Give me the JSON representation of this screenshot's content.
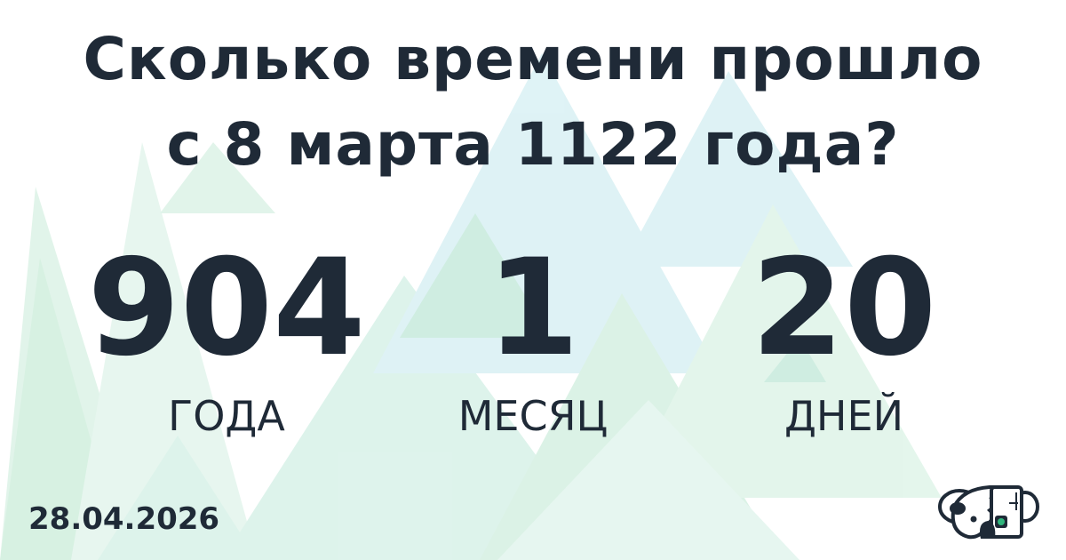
{
  "title": {
    "line1": "Сколько времени прошло",
    "line2": "с 8 марта 1122 года?"
  },
  "elapsed": [
    {
      "value": "904",
      "unit": "ГОДА"
    },
    {
      "value": "1",
      "unit": "МЕСЯЦ"
    },
    {
      "value": "20",
      "unit": "ДНЕЙ"
    }
  ],
  "date": "28.04.2026",
  "colors": {
    "text": "#1f2a37",
    "triangle_green": "#bfe8d2",
    "triangle_teal": "#bfe6ec"
  },
  "logo": {
    "icon": "koala-robot-logo"
  }
}
